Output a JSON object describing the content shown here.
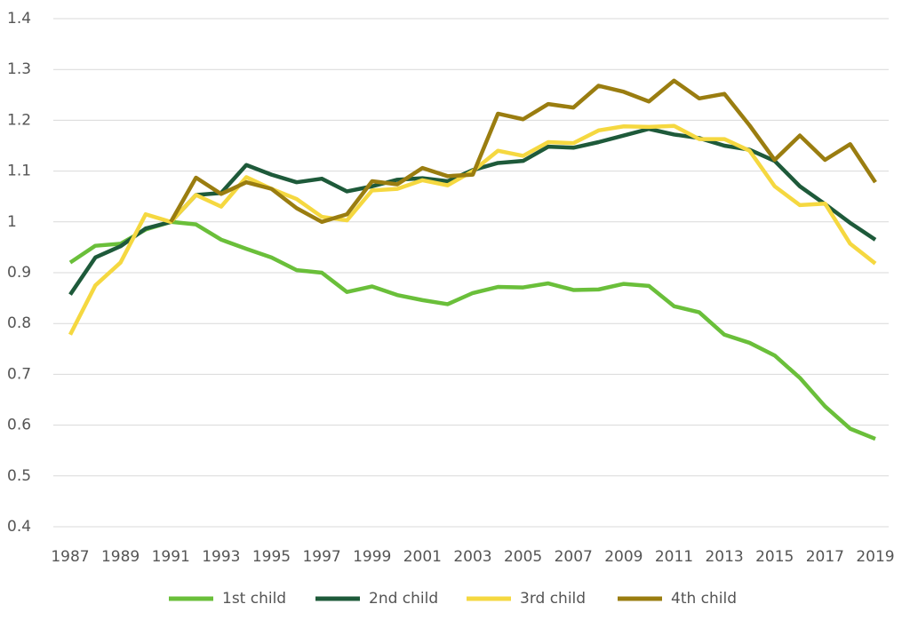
{
  "chart_data": {
    "type": "line",
    "x": [
      1987,
      1988,
      1989,
      1990,
      1991,
      1992,
      1993,
      1994,
      1995,
      1996,
      1997,
      1998,
      1999,
      2000,
      2001,
      2002,
      2003,
      2004,
      2005,
      2006,
      2007,
      2008,
      2009,
      2010,
      2011,
      2012,
      2013,
      2014,
      2015,
      2016,
      2017,
      2018,
      2019
    ],
    "xlim": [
      1987,
      2019
    ],
    "xticks": [
      1987,
      1989,
      1991,
      1993,
      1995,
      1997,
      1999,
      2001,
      2003,
      2005,
      2007,
      2009,
      2011,
      2013,
      2015,
      2017,
      2019
    ],
    "ylim": [
      0.4,
      1.4
    ],
    "yticks": [
      0.4,
      0.5,
      0.6,
      0.7,
      0.8,
      0.9,
      1,
      1.1,
      1.2,
      1.3,
      1.4
    ],
    "grid": true,
    "legend": "bottom",
    "series": [
      {
        "name": "1st child",
        "color": "#6abf3a",
        "values": [
          0.92,
          0.953,
          0.957,
          0.985,
          1.0,
          0.995,
          0.965,
          0.947,
          0.93,
          0.905,
          0.9,
          0.862,
          0.873,
          0.856,
          0.846,
          0.838,
          0.86,
          0.872,
          0.871,
          0.879,
          0.866,
          0.867,
          0.878,
          0.874,
          0.834,
          0.822,
          0.778,
          0.762,
          0.737,
          0.693,
          0.637,
          0.593,
          0.573
        ]
      },
      {
        "name": "2nd child",
        "color": "#1e5a3a",
        "values": [
          0.857,
          0.93,
          0.952,
          0.987,
          1.0,
          1.053,
          1.057,
          1.112,
          1.093,
          1.078,
          1.085,
          1.06,
          1.07,
          1.083,
          1.086,
          1.08,
          1.102,
          1.116,
          1.12,
          1.148,
          1.146,
          1.157,
          1.17,
          1.183,
          1.172,
          1.165,
          1.15,
          1.142,
          1.12,
          1.07,
          1.035,
          0.998,
          0.965
        ]
      },
      {
        "name": "3rd child",
        "color": "#f5d840",
        "values": [
          0.778,
          0.875,
          0.92,
          1.015,
          1.0,
          1.053,
          1.03,
          1.088,
          1.065,
          1.045,
          1.01,
          1.003,
          1.062,
          1.065,
          1.082,
          1.072,
          1.1,
          1.14,
          1.13,
          1.157,
          1.155,
          1.18,
          1.188,
          1.187,
          1.189,
          1.163,
          1.163,
          1.14,
          1.07,
          1.033,
          1.036,
          0.957,
          0.918
        ]
      },
      {
        "name": "4th child",
        "color": "#9a7d10",
        "values": [
          null,
          null,
          null,
          null,
          1.0,
          1.087,
          1.055,
          1.078,
          1.065,
          1.027,
          1.0,
          1.015,
          1.08,
          1.074,
          1.106,
          1.09,
          1.093,
          1.213,
          1.202,
          1.232,
          1.225,
          1.268,
          1.256,
          1.237,
          1.278,
          1.243,
          1.252,
          1.19,
          1.122,
          1.17,
          1.122,
          1.153,
          1.078
        ]
      }
    ]
  }
}
